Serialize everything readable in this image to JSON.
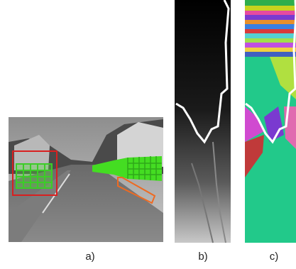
{
  "figure": {
    "panels": [
      {
        "label": "a)"
      },
      {
        "label": "b)"
      },
      {
        "label": "c)"
      }
    ]
  }
}
